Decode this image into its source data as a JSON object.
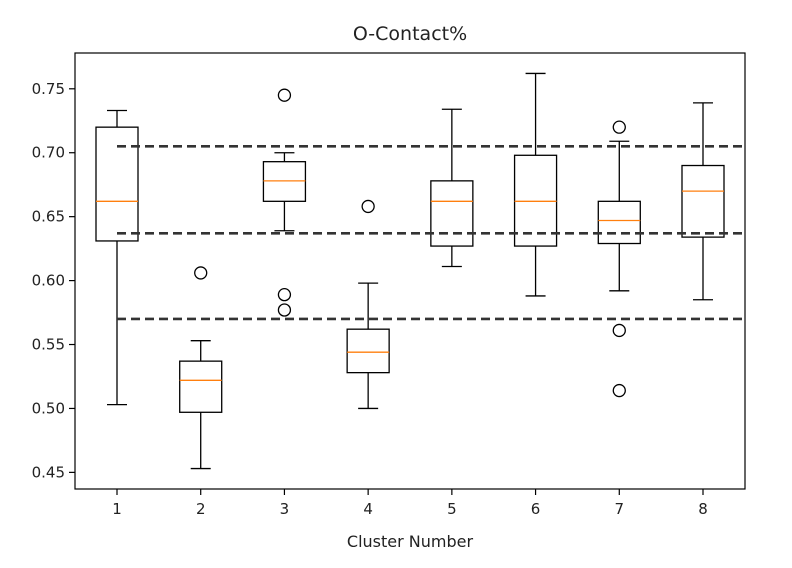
{
  "chart_data": {
    "type": "box",
    "title": "O-Contact%",
    "xlabel": "Cluster Number",
    "ylabel": "",
    "ylim": [
      0.437,
      0.778
    ],
    "yticks": [
      0.45,
      0.5,
      0.55,
      0.6,
      0.65,
      0.7,
      0.75
    ],
    "ytick_labels": [
      "0.45",
      "0.50",
      "0.55",
      "0.60",
      "0.65",
      "0.70",
      "0.75"
    ],
    "categories": [
      "1",
      "2",
      "3",
      "4",
      "5",
      "6",
      "7",
      "8"
    ],
    "boxes": [
      {
        "label": "1",
        "whisker_low": 0.503,
        "q1": 0.631,
        "median": 0.662,
        "q3": 0.72,
        "whisker_high": 0.733,
        "outliers": []
      },
      {
        "label": "2",
        "whisker_low": 0.453,
        "q1": 0.497,
        "median": 0.522,
        "q3": 0.537,
        "whisker_high": 0.553,
        "outliers": [
          0.606
        ]
      },
      {
        "label": "3",
        "whisker_low": 0.639,
        "q1": 0.662,
        "median": 0.678,
        "q3": 0.693,
        "whisker_high": 0.7,
        "outliers": [
          0.745,
          0.589,
          0.577
        ]
      },
      {
        "label": "4",
        "whisker_low": 0.5,
        "q1": 0.528,
        "median": 0.544,
        "q3": 0.562,
        "whisker_high": 0.598,
        "outliers": [
          0.658
        ]
      },
      {
        "label": "5",
        "whisker_low": 0.611,
        "q1": 0.627,
        "median": 0.662,
        "q3": 0.678,
        "whisker_high": 0.734,
        "outliers": []
      },
      {
        "label": "6",
        "whisker_low": 0.588,
        "q1": 0.627,
        "median": 0.662,
        "q3": 0.698,
        "whisker_high": 0.762,
        "outliers": []
      },
      {
        "label": "7",
        "whisker_low": 0.592,
        "q1": 0.629,
        "median": 0.647,
        "q3": 0.662,
        "whisker_high": 0.709,
        "outliers": [
          0.72,
          0.561,
          0.514
        ]
      },
      {
        "label": "8",
        "whisker_low": 0.585,
        "q1": 0.634,
        "median": 0.67,
        "q3": 0.69,
        "whisker_high": 0.739,
        "outliers": []
      }
    ],
    "reference_lines": [
      {
        "y": 0.705,
        "style": "dashed"
      },
      {
        "y": 0.637,
        "style": "dashed"
      },
      {
        "y": 0.57,
        "style": "dashed"
      }
    ],
    "grid": false,
    "colors": {
      "box": "#000000",
      "median": "#ff7f0e",
      "reference_line": "#333333",
      "axes": "#000000"
    }
  }
}
